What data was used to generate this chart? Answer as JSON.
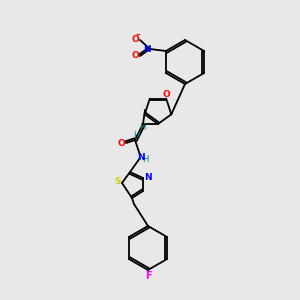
{
  "background_color": "#e8e8e8",
  "bond_color": "#000000",
  "atom_colors": {
    "F": "#ff00ff",
    "N": "#0000ff",
    "O": "#ff0000",
    "S": "#cccc00",
    "H": "#008080",
    "C": "#000000"
  },
  "figsize": [
    3.0,
    3.0
  ],
  "dpi": 100
}
